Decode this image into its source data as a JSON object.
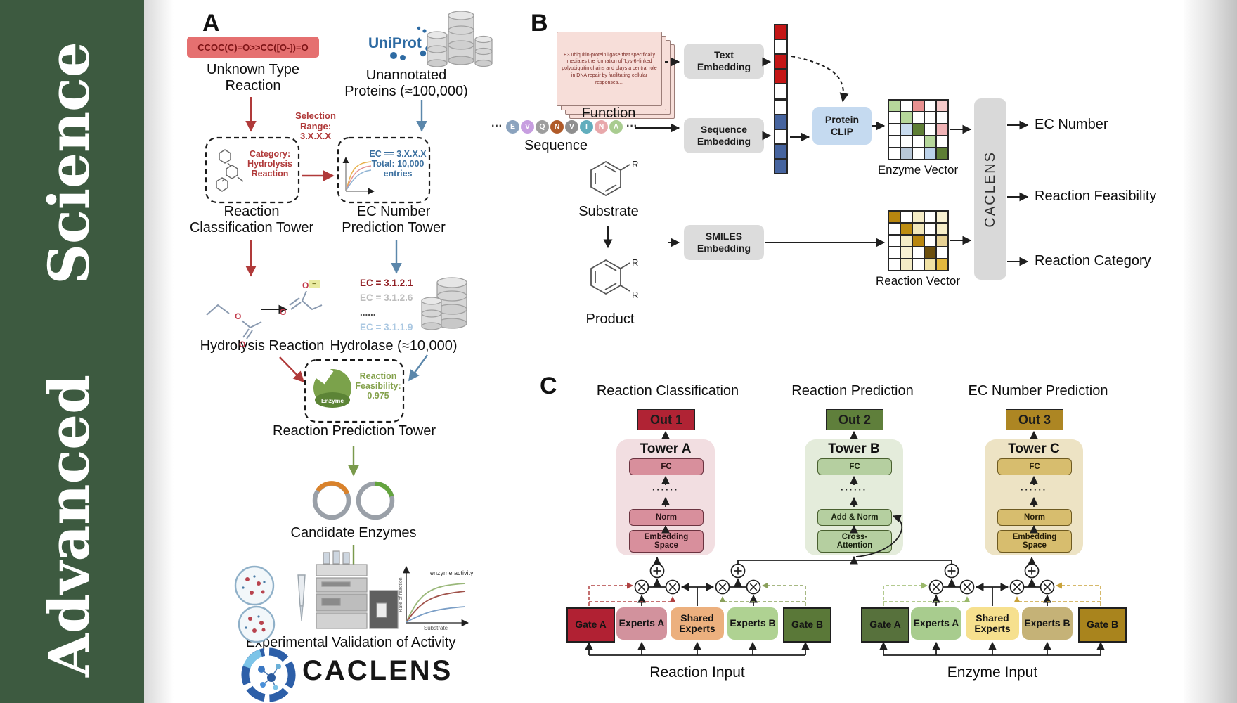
{
  "sidebar": {
    "word_top": "Science",
    "word_bottom": "Advanced"
  },
  "colors": {
    "sidebar_green": "#3d5a40",
    "accent_red": "#b03a3a",
    "accent_blue": "#5b87ab",
    "accent_green": "#7a9a4c",
    "uniprot_blue": "#2e6ba3",
    "smiles_box": "#e57070",
    "embedding_box": "#dcdcdc",
    "protein_clip_box": "#c5daf0",
    "caclens_bar": "#d9d9d9",
    "out1": "#b02334",
    "out2": "#5f7f3b",
    "out3": "#ad8623",
    "tower_a_bg": "#f2dee1",
    "tower_b_bg": "#e4ecdb",
    "tower_c_bg": "#ede3c4"
  },
  "a": {
    "label": "A",
    "smiles": "CCOC(C)=O>>CC([O-])=O",
    "unknown": "Unknown Type\nReaction",
    "uniprot": "UniProt",
    "unannotated": "Unannotated\nProteins (≈100,000)",
    "selection": "Selection\nRange:\n3.X.X.X",
    "category": "Category:\nHydrolysis\nReaction",
    "ec_box": "EC == 3.X.X.X\nTotal: 10,000\nentries",
    "rc_tower": "Reaction\nClassification Tower",
    "ec_tower": "EC Number\nPrediction Tower",
    "hydrolysis": "Hydrolysis Reaction",
    "ec_list": [
      {
        "text": "EC = 3.1.2.1",
        "color": "#8f1d22"
      },
      {
        "text": "EC = 3.1.2.6",
        "color": "#bdbdbd"
      },
      {
        "text": "......",
        "color": "#4a4a4a"
      },
      {
        "text": "EC = 3.1.1.9",
        "color": "#abc8e2"
      }
    ],
    "hydrolase": "Hydrolase (≈10,000)",
    "enzyme": "Enzyme",
    "feasibility": "Reaction\nFeasibility:\n0.975",
    "rp_tower": "Reaction Prediction Tower",
    "candidates": "Candidate Enzymes",
    "plot": {
      "series_label": "enzyme activity",
      "ylabel": "Rate of reaction",
      "xlabel": "Substrate"
    },
    "validation": "Experimental Validation of Activity",
    "brand": "CACLENS"
  },
  "b": {
    "label": "B",
    "function_text": "E3 ubiquitin-protein ligase that specifically mediates the formation of 'Lys-6'-linked polyubiquitin chains and plays a central role in DNA repair by facilitating cellular responses....",
    "function": "Function",
    "sequence": "Sequence",
    "ellipsis": "···",
    "residues": [
      {
        "letter": "E",
        "color": "#8ba3be"
      },
      {
        "letter": "V",
        "color": "#c79ee0"
      },
      {
        "letter": "Q",
        "color": "#9e9e9e"
      },
      {
        "letter": "N",
        "color": "#b05a28"
      },
      {
        "letter": "V",
        "color": "#8f8f8f"
      },
      {
        "letter": "I",
        "color": "#62aebd"
      },
      {
        "letter": "N",
        "color": "#e8a8ab"
      },
      {
        "letter": "A",
        "color": "#a9cc90"
      }
    ],
    "text_embedding": "Text\nEmbedding",
    "sequence_embedding": "Sequence\nEmbedding",
    "smiles_embedding": "SMILES\nEmbedding",
    "protein_clip": "Protein\nCLIP",
    "substrate": "Substrate",
    "product": "Product",
    "r_group": "R",
    "enzyme_vector": "Enzyme Vector",
    "reaction_vector": "Reaction Vector",
    "caclens": "CACLENS",
    "outputs": [
      "EC Number",
      "Reaction Feasibility",
      "Reaction Category"
    ],
    "text_vector": [
      "#c41616",
      "#ffffff",
      "#c41616",
      "#c41616",
      "#ffffff"
    ],
    "seq_vector": [
      "#ffffff",
      "#46649f",
      "#ffffff",
      "#46649f",
      "#46649f"
    ],
    "enzyme_matrix": [
      [
        "#b6d79b",
        "#ffffff",
        "#e89090",
        "#ffffff",
        "#f6caca"
      ],
      [
        "#ffffff",
        "#b6d79b",
        "#ffffff",
        "#ffffff",
        "#ffffff"
      ],
      [
        "#ffffff",
        "#c9dcf0",
        "#5e7e35",
        "#ffffff",
        "#f0b3b6"
      ],
      [
        "#ffffff",
        "#ffffff",
        "#ffffff",
        "#b6d79b",
        "#ffffff"
      ],
      [
        "#ffffff",
        "#b9c8d8",
        "#ffffff",
        "#bcd2ea",
        "#5e7e35"
      ]
    ],
    "reaction_matrix": [
      [
        "#b8860f",
        "#ffffff",
        "#f4ecc6",
        "#ffffff",
        "#f8f1d2"
      ],
      [
        "#ffffff",
        "#bd8d12",
        "#f2e8bc",
        "#ffffff",
        "#f6eec9"
      ],
      [
        "#ffffff",
        "#f4ecc6",
        "#b8860f",
        "#ffffff",
        "#e6d194"
      ],
      [
        "#ffffff",
        "#f8f1d2",
        "#ffffff",
        "#6d500e",
        "#ffffff"
      ],
      [
        "#ffffff",
        "#f4ecc6",
        "#ffffff",
        "#f0e1a4",
        "#e3b83e"
      ]
    ]
  },
  "c": {
    "label": "C",
    "dots": "······",
    "columns": [
      {
        "header": "Reaction Classification",
        "out": "Out 1",
        "tower": "Tower A",
        "top": "FC",
        "mid": "Norm",
        "bottom": "Embedding\nSpace"
      },
      {
        "header": "Reaction Prediction",
        "out": "Out 2",
        "tower": "Tower B",
        "top": "FC",
        "mid": "Add & Norm",
        "bottom": "Cross-\nAttention"
      },
      {
        "header": "EC Number Prediction",
        "out": "Out 3",
        "tower": "Tower C",
        "top": "FC",
        "mid": "Norm",
        "bottom": "Embedding\nSpace"
      }
    ],
    "moe": [
      {
        "input": "Reaction Input",
        "boxes": [
          "Gate A",
          "Experts A",
          "Shared\nExperts",
          "Experts B",
          "Gate B"
        ]
      },
      {
        "input": "Enzyme Input",
        "boxes": [
          "Gate A",
          "Experts A",
          "Shared\nExperts",
          "Experts B",
          "Gate B"
        ]
      }
    ]
  }
}
